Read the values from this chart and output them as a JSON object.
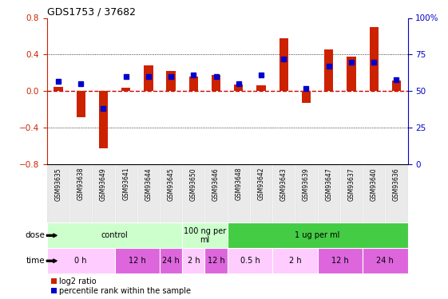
{
  "title": "GDS1753 / 37682",
  "samples": [
    "GSM93635",
    "GSM93638",
    "GSM93649",
    "GSM93641",
    "GSM93644",
    "GSM93645",
    "GSM93650",
    "GSM93646",
    "GSM93648",
    "GSM93642",
    "GSM93643",
    "GSM93639",
    "GSM93647",
    "GSM93637",
    "GSM93640",
    "GSM93636"
  ],
  "log2_ratio": [
    0.05,
    -0.28,
    -0.62,
    0.04,
    0.28,
    0.22,
    0.16,
    0.18,
    0.07,
    0.06,
    0.58,
    -0.13,
    0.46,
    0.38,
    0.7,
    0.12
  ],
  "percentile": [
    57,
    55,
    38,
    60,
    60,
    60,
    61,
    60,
    55,
    61,
    72,
    52,
    67,
    70,
    70,
    58
  ],
  "ylim_left": [
    -0.8,
    0.8
  ],
  "ylim_right": [
    0,
    100
  ],
  "yticks_left": [
    -0.8,
    -0.4,
    0.0,
    0.4,
    0.8
  ],
  "yticks_right": [
    0,
    25,
    50,
    75,
    100
  ],
  "dose_groups": [
    {
      "label": "control",
      "start": 0,
      "end": 6,
      "color": "#CCFFCC"
    },
    {
      "label": "100 ng per\nml",
      "start": 6,
      "end": 8,
      "color": "#CCFFCC"
    },
    {
      "label": "1 ug per ml",
      "start": 8,
      "end": 16,
      "color": "#44CC44"
    }
  ],
  "time_groups": [
    {
      "label": "0 h",
      "start": 0,
      "end": 3,
      "color": "#FFCCFF"
    },
    {
      "label": "12 h",
      "start": 3,
      "end": 5,
      "color": "#DD66DD"
    },
    {
      "label": "24 h",
      "start": 5,
      "end": 6,
      "color": "#DD66DD"
    },
    {
      "label": "2 h",
      "start": 6,
      "end": 7,
      "color": "#FFCCFF"
    },
    {
      "label": "12 h",
      "start": 7,
      "end": 8,
      "color": "#DD66DD"
    },
    {
      "label": "0.5 h",
      "start": 8,
      "end": 10,
      "color": "#FFCCFF"
    },
    {
      "label": "2 h",
      "start": 10,
      "end": 12,
      "color": "#FFCCFF"
    },
    {
      "label": "12 h",
      "start": 12,
      "end": 14,
      "color": "#DD66DD"
    },
    {
      "label": "24 h",
      "start": 14,
      "end": 16,
      "color": "#DD66DD"
    }
  ],
  "bar_color": "#CC2200",
  "pct_color": "#0000CC",
  "zero_line_color": "#CC0000",
  "label_color_left": "#CC2200",
  "label_color_right": "#0000CC",
  "sample_bg": "#DDDDDD"
}
